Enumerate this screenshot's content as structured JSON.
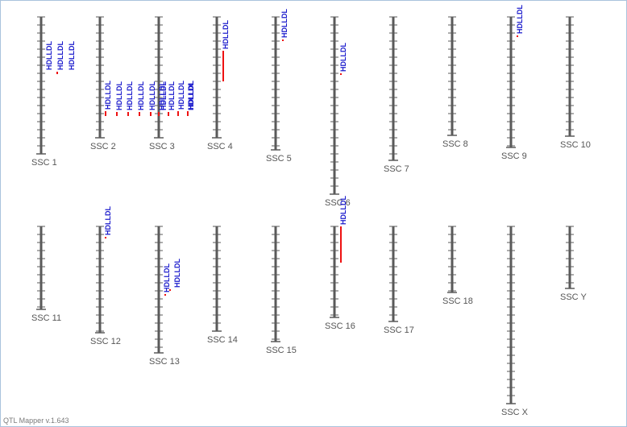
{
  "app": {
    "version_text": "QTL Mapper v.1.643"
  },
  "colors": {
    "chromosome": "#5a5a5a",
    "qtl_bar": "#ee1111",
    "qtl_text": "#1a1acc",
    "label": "#555555"
  },
  "chromosomes": [
    {
      "name": "SSC 1",
      "length": 170,
      "qtls": [
        {
          "trait": "HDLLDL",
          "start": 68.0,
          "end": 71.0
        },
        {
          "trait": "HDLLDL",
          "start": 68.0,
          "end": 70.0
        },
        {
          "trait": "HDLLDL",
          "start": 68.0,
          "end": 70.0
        }
      ]
    },
    {
      "name": "SSC 2",
      "length": 150,
      "qtls": [
        {
          "trait": "HDLLDL",
          "start": 117.0,
          "end": 123.0
        },
        {
          "trait": "HDLLDL",
          "start": 118.0,
          "end": 123.0
        },
        {
          "trait": "HDLLDL",
          "start": 118.0,
          "end": 123.0
        },
        {
          "trait": "HDLLDL",
          "start": 118.0,
          "end": 123.0
        },
        {
          "trait": "HDLLDL",
          "start": 118.0,
          "end": 123.0
        },
        {
          "trait": "HDLLDL",
          "start": 118.0,
          "end": 123.0
        }
      ]
    },
    {
      "name": "SSC 3",
      "length": 150,
      "qtls": [
        {
          "trait": "HDLLDL",
          "start": 118.0,
          "end": 123.0
        },
        {
          "trait": "HDLLDL",
          "start": 118.0,
          "end": 123.0
        },
        {
          "trait": "HDLLDL",
          "start": 117.0,
          "end": 123.0
        },
        {
          "trait": "HDLLDL",
          "start": 117.0,
          "end": 123.0
        },
        {
          "trait": "HDLLDL",
          "start": 118.0,
          "end": 123.0
        }
      ]
    },
    {
      "name": "SSC 4",
      "length": 150,
      "qtls": [
        {
          "trait": "HDLLDL",
          "start": 42.0,
          "end": 80.0
        }
      ]
    },
    {
      "name": "SSC 5",
      "length": 165,
      "qtls": [
        {
          "trait": "HDLLDL",
          "start": 28.0,
          "end": 30.0
        }
      ]
    },
    {
      "name": "SSC 6",
      "length": 220,
      "qtls": [
        {
          "trait": "HDLLDL",
          "start": 70.0,
          "end": 72.0
        }
      ]
    },
    {
      "name": "SSC 7",
      "length": 178,
      "qtls": []
    },
    {
      "name": "SSC 8",
      "length": 147,
      "qtls": []
    },
    {
      "name": "SSC 9",
      "length": 162,
      "qtls": [
        {
          "trait": "HDLLDL",
          "start": 23.0,
          "end": 25.0
        }
      ]
    },
    {
      "name": "SSC 10",
      "length": 148,
      "qtls": []
    },
    {
      "name": "SSC 11",
      "length": 103,
      "qtls": []
    },
    {
      "name": "SSC 12",
      "length": 132,
      "qtls": [
        {
          "trait": "HDLLDL",
          "start": 13.0,
          "end": 15.0
        }
      ]
    },
    {
      "name": "SSC 13",
      "length": 157,
      "qtls": [
        {
          "trait": "HDLLDL",
          "start": 84.0,
          "end": 86.0
        },
        {
          "trait": "HDLLDL",
          "start": 78.0,
          "end": 80.0
        }
      ]
    },
    {
      "name": "SSC 14",
      "length": 130,
      "qtls": []
    },
    {
      "name": "SSC 15",
      "length": 143,
      "qtls": []
    },
    {
      "name": "SSC 16",
      "length": 113,
      "qtls": [
        {
          "trait": "HDLLDL",
          "start": 0.0,
          "end": 45.0
        }
      ]
    },
    {
      "name": "SSC 17",
      "length": 118,
      "qtls": []
    },
    {
      "name": "SSC 18",
      "length": 82,
      "qtls": []
    },
    {
      "name": "SSC X",
      "length": 220,
      "qtls": []
    },
    {
      "name": "SSC Y",
      "length": 77,
      "qtls": []
    }
  ]
}
